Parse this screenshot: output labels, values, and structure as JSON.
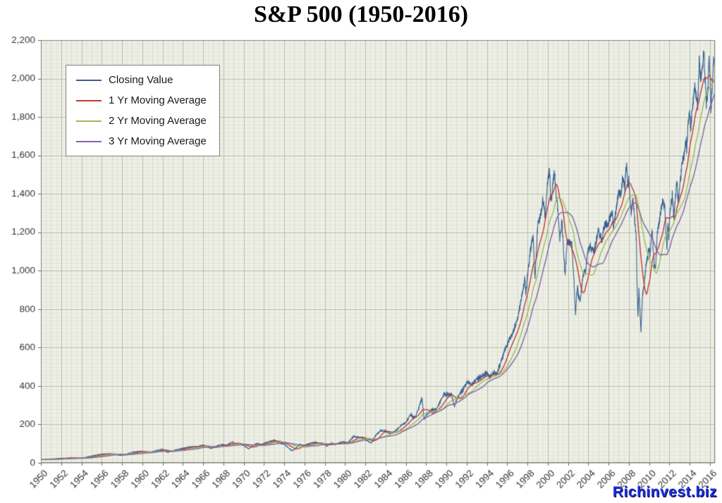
{
  "page": {
    "watermark": "Richinvest.biz"
  },
  "chart_data": {
    "type": "line",
    "title": "S&P 500 (1950-2016)",
    "xlabel": "",
    "ylabel": "",
    "x_range": [
      1950,
      2016.5
    ],
    "ylim": [
      0,
      2200
    ],
    "y_tick_step": 200,
    "grid": true,
    "legend_position": "top-left",
    "plot_bg": "#eef0e7",
    "y_tick_labels": [
      "0",
      "200",
      "400",
      "600",
      "800",
      "1,000",
      "1,200",
      "1,400",
      "1,600",
      "1,800",
      "2,000",
      "2,200"
    ],
    "x_tick_labels": [
      "1950",
      "1952",
      "1954",
      "1956",
      "1958",
      "1960",
      "1962",
      "1964",
      "1966",
      "1968",
      "1970",
      "1972",
      "1974",
      "1976",
      "1978",
      "1980",
      "1982",
      "1984",
      "1986",
      "1988",
      "1990",
      "1992",
      "1994",
      "1996",
      "1998",
      "2000",
      "2002",
      "2004",
      "2006",
      "2008",
      "2010",
      "2012",
      "2014",
      "2016"
    ],
    "series": [
      {
        "name": "Closing Value",
        "color": "#366092",
        "role": "closing-value",
        "points": [
          [
            1950.0,
            16.7
          ],
          [
            1950.5,
            17.7
          ],
          [
            1951.0,
            20.4
          ],
          [
            1951.5,
            21.1
          ],
          [
            1952.0,
            23.8
          ],
          [
            1952.5,
            24.5
          ],
          [
            1953.0,
            26.6
          ],
          [
            1953.5,
            24.1
          ],
          [
            1954.0,
            24.8
          ],
          [
            1954.5,
            29.2
          ],
          [
            1955.0,
            36.0
          ],
          [
            1955.5,
            41.0
          ],
          [
            1956.0,
            45.5
          ],
          [
            1956.5,
            46.5
          ],
          [
            1957.0,
            46.7
          ],
          [
            1957.8,
            39.0
          ],
          [
            1958.0,
            40.3
          ],
          [
            1958.5,
            45.3
          ],
          [
            1959.0,
            55.2
          ],
          [
            1959.5,
            58.7
          ],
          [
            1960.0,
            59.9
          ],
          [
            1960.8,
            52.8
          ],
          [
            1961.0,
            58.1
          ],
          [
            1961.5,
            64.6
          ],
          [
            1962.0,
            71.6
          ],
          [
            1962.5,
            54.8
          ],
          [
            1963.0,
            63.1
          ],
          [
            1963.5,
            69.4
          ],
          [
            1964.0,
            75.0
          ],
          [
            1964.5,
            81.7
          ],
          [
            1965.0,
            84.8
          ],
          [
            1965.5,
            84.1
          ],
          [
            1966.0,
            92.4
          ],
          [
            1966.8,
            74.5
          ],
          [
            1967.0,
            80.3
          ],
          [
            1967.5,
            90.6
          ],
          [
            1968.0,
            96.5
          ],
          [
            1968.2,
            89.1
          ],
          [
            1968.9,
            108.4
          ],
          [
            1969.0,
            103.9
          ],
          [
            1969.5,
            97.7
          ],
          [
            1970.0,
            92.1
          ],
          [
            1970.4,
            76.6
          ],
          [
            1970.5,
            72.7
          ],
          [
            1971.0,
            92.2
          ],
          [
            1971.3,
            101.0
          ],
          [
            1971.8,
            94.2
          ],
          [
            1972.0,
            102.1
          ],
          [
            1973.0,
            118.1
          ],
          [
            1973.5,
            104.0
          ],
          [
            1974.0,
            97.6
          ],
          [
            1974.75,
            63.5
          ],
          [
            1975.0,
            68.6
          ],
          [
            1975.5,
            95.2
          ],
          [
            1976.0,
            90.2
          ],
          [
            1976.7,
            104.0
          ],
          [
            1977.0,
            107.5
          ],
          [
            1977.5,
            100.0
          ],
          [
            1978.0,
            95.1
          ],
          [
            1978.2,
            87.0
          ],
          [
            1978.7,
            103.9
          ],
          [
            1979.0,
            96.1
          ],
          [
            1979.8,
            110.2
          ],
          [
            1980.0,
            107.9
          ],
          [
            1980.25,
            102.1
          ],
          [
            1980.9,
            140.5
          ],
          [
            1981.0,
            135.8
          ],
          [
            1981.6,
            131.0
          ],
          [
            1982.0,
            122.6
          ],
          [
            1982.6,
            102.4
          ],
          [
            1983.0,
            140.6
          ],
          [
            1983.5,
            168.1
          ],
          [
            1984.0,
            164.9
          ],
          [
            1984.5,
            150.7
          ],
          [
            1985.0,
            167.2
          ],
          [
            1985.5,
            191.8
          ],
          [
            1986.0,
            211.3
          ],
          [
            1986.5,
            252.0
          ],
          [
            1986.7,
            236.1
          ],
          [
            1987.0,
            242.2
          ],
          [
            1987.6,
            336.8
          ],
          [
            1987.8,
            224.8
          ],
          [
            1988.0,
            247.1
          ],
          [
            1988.5,
            273.5
          ],
          [
            1989.0,
            277.7
          ],
          [
            1989.8,
            359.8
          ],
          [
            1990.0,
            353.4
          ],
          [
            1990.5,
            358.0
          ],
          [
            1990.8,
            295.5
          ],
          [
            1991.0,
            330.2
          ],
          [
            1991.5,
            371.2
          ],
          [
            1992.0,
            417.1
          ],
          [
            1992.5,
            408.1
          ],
          [
            1993.0,
            435.7
          ],
          [
            1993.5,
            450.5
          ],
          [
            1994.0,
            466.5
          ],
          [
            1994.3,
            445.8
          ],
          [
            1994.7,
            470.4
          ],
          [
            1995.0,
            459.3
          ],
          [
            1995.5,
            544.8
          ],
          [
            1996.0,
            615.9
          ],
          [
            1996.5,
            670.6
          ],
          [
            1997.0,
            740.7
          ],
          [
            1997.5,
            885.1
          ],
          [
            1997.75,
            954.3
          ],
          [
            1997.85,
            876.0
          ],
          [
            1998.0,
            970.4
          ],
          [
            1998.3,
            1101.8
          ],
          [
            1998.55,
            1186.8
          ],
          [
            1998.75,
            957.3
          ],
          [
            1999.0,
            1229.2
          ],
          [
            1999.3,
            1286.4
          ],
          [
            1999.55,
            1372.7
          ],
          [
            1999.75,
            1282.7
          ],
          [
            2000.0,
            1469.3
          ],
          [
            2000.2,
            1527.5
          ],
          [
            2000.3,
            1356.6
          ],
          [
            2000.45,
            1420.6
          ],
          [
            2000.65,
            1520.8
          ],
          [
            2000.85,
            1379.6
          ],
          [
            2001.0,
            1320.3
          ],
          [
            2001.2,
            1160.3
          ],
          [
            2001.4,
            1260.7
          ],
          [
            2001.72,
            965.8
          ],
          [
            2001.9,
            1139.5
          ],
          [
            2002.0,
            1148.1
          ],
          [
            2002.35,
            1147.4
          ],
          [
            2002.55,
            989.8
          ],
          [
            2002.75,
            776.8
          ],
          [
            2002.95,
            936.3
          ],
          [
            2003.0,
            879.8
          ],
          [
            2003.2,
            841.2
          ],
          [
            2003.5,
            974.5
          ],
          [
            2003.75,
            1008.0
          ],
          [
            2004.0,
            1111.9
          ],
          [
            2004.2,
            1126.2
          ],
          [
            2004.6,
            1101.7
          ],
          [
            2005.0,
            1211.9
          ],
          [
            2005.35,
            1156.9
          ],
          [
            2005.6,
            1234.2
          ],
          [
            2006.0,
            1248.3
          ],
          [
            2006.35,
            1310.6
          ],
          [
            2006.5,
            1223.7
          ],
          [
            2006.8,
            1335.9
          ],
          [
            2007.0,
            1418.3
          ],
          [
            2007.2,
            1386.9
          ],
          [
            2007.4,
            1482.4
          ],
          [
            2007.6,
            1433.1
          ],
          [
            2007.78,
            1565.2
          ],
          [
            2007.9,
            1445.9
          ],
          [
            2008.0,
            1468.4
          ],
          [
            2008.25,
            1273.4
          ],
          [
            2008.4,
            1385.6
          ],
          [
            2008.6,
            1262.9
          ],
          [
            2008.75,
            1166.4
          ],
          [
            2008.8,
            968.8
          ],
          [
            2008.9,
            752.4
          ],
          [
            2009.0,
            903.3
          ],
          [
            2009.1,
            805.2
          ],
          [
            2009.2,
            676.5
          ],
          [
            2009.35,
            872.8
          ],
          [
            2009.5,
            919.3
          ],
          [
            2009.7,
            1025.2
          ],
          [
            2010.0,
            1115.1
          ],
          [
            2010.1,
            1073.9
          ],
          [
            2010.3,
            1217.3
          ],
          [
            2010.5,
            1030.7
          ],
          [
            2010.65,
            1022.6
          ],
          [
            2010.8,
            1183.3
          ],
          [
            2011.0,
            1257.6
          ],
          [
            2011.35,
            1363.6
          ],
          [
            2011.55,
            1339.7
          ],
          [
            2011.65,
            1218.9
          ],
          [
            2011.77,
            1099.2
          ],
          [
            2011.85,
            1253.3
          ],
          [
            2011.95,
            1158.7
          ],
          [
            2012.0,
            1257.6
          ],
          [
            2012.3,
            1408.5
          ],
          [
            2012.45,
            1278.0
          ],
          [
            2012.75,
            1465.8
          ],
          [
            2012.85,
            1353.3
          ],
          [
            2013.0,
            1426.2
          ],
          [
            2013.3,
            1569.2
          ],
          [
            2013.5,
            1606.3
          ],
          [
            2013.65,
            1685.7
          ],
          [
            2013.7,
            1632.0
          ],
          [
            2013.85,
            1756.5
          ],
          [
            2014.0,
            1848.4
          ],
          [
            2014.1,
            1741.9
          ],
          [
            2014.35,
            1883.9
          ],
          [
            2014.55,
            1960.2
          ],
          [
            2014.65,
            1909.6
          ],
          [
            2014.8,
            1862.5
          ],
          [
            2014.95,
            2090.6
          ],
          [
            2015.0,
            2058.9
          ],
          [
            2015.1,
            1992.7
          ],
          [
            2015.4,
            2130.8
          ],
          [
            2015.65,
            1867.6
          ],
          [
            2015.8,
            1923.8
          ],
          [
            2015.9,
            2109.8
          ],
          [
            2016.0,
            2043.9
          ],
          [
            2016.1,
            1829.1
          ],
          [
            2016.35,
            2096.0
          ],
          [
            2016.5,
            2102.9
          ]
        ]
      },
      {
        "name": "1 Yr Moving Average",
        "color": "#c03b33",
        "role": "moving-average",
        "window_years": 1
      },
      {
        "name": "2 Yr Moving Average",
        "color": "#9bbb59",
        "role": "moving-average",
        "window_years": 2
      },
      {
        "name": "3 Yr Moving Average",
        "color": "#8064a2",
        "role": "moving-average",
        "window_years": 3
      }
    ]
  }
}
